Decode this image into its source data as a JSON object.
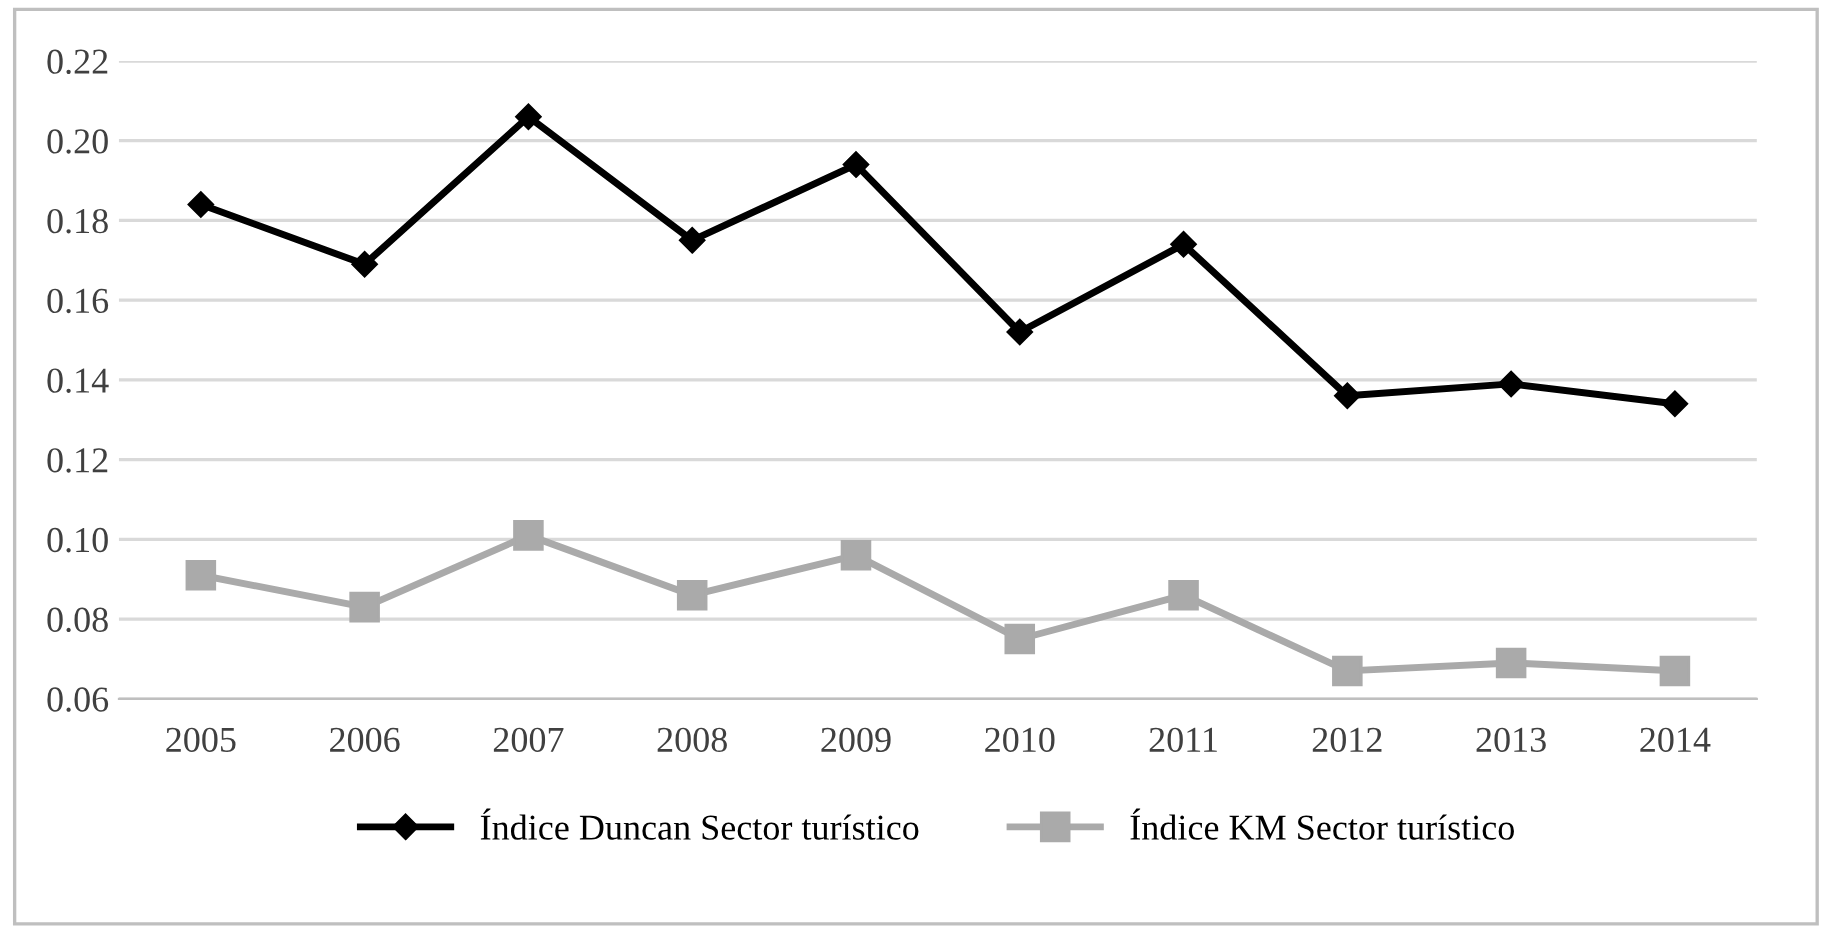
{
  "chart_data": {
    "type": "line",
    "categories": [
      "2005",
      "2006",
      "2007",
      "2008",
      "2009",
      "2010",
      "2011",
      "2012",
      "2013",
      "2014"
    ],
    "series": [
      {
        "name": "Índice Duncan Sector turístico",
        "color": "#000000",
        "marker": "diamond",
        "values": [
          0.184,
          0.169,
          0.206,
          0.175,
          0.194,
          0.152,
          0.174,
          0.136,
          0.139,
          0.134
        ]
      },
      {
        "name": "Índice KM Sector turístico",
        "color": "#aaaaaa",
        "marker": "square",
        "values": [
          0.091,
          0.083,
          0.101,
          0.086,
          0.096,
          0.075,
          0.086,
          0.067,
          0.069,
          0.067
        ]
      }
    ],
    "ylim": [
      0.06,
      0.22
    ],
    "yticks": [
      {
        "value": 0.06,
        "label": "0.06"
      },
      {
        "value": 0.08,
        "label": "0.08"
      },
      {
        "value": 0.1,
        "label": "0.10"
      },
      {
        "value": 0.12,
        "label": "0.12"
      },
      {
        "value": 0.14,
        "label": "0.14"
      },
      {
        "value": 0.16,
        "label": "0.16"
      },
      {
        "value": 0.18,
        "label": "0.18"
      },
      {
        "value": 0.2,
        "label": "0.20"
      },
      {
        "value": 0.22,
        "label": "0.22"
      }
    ],
    "grid": "y",
    "legend": "bottom",
    "line_style": "solid"
  }
}
